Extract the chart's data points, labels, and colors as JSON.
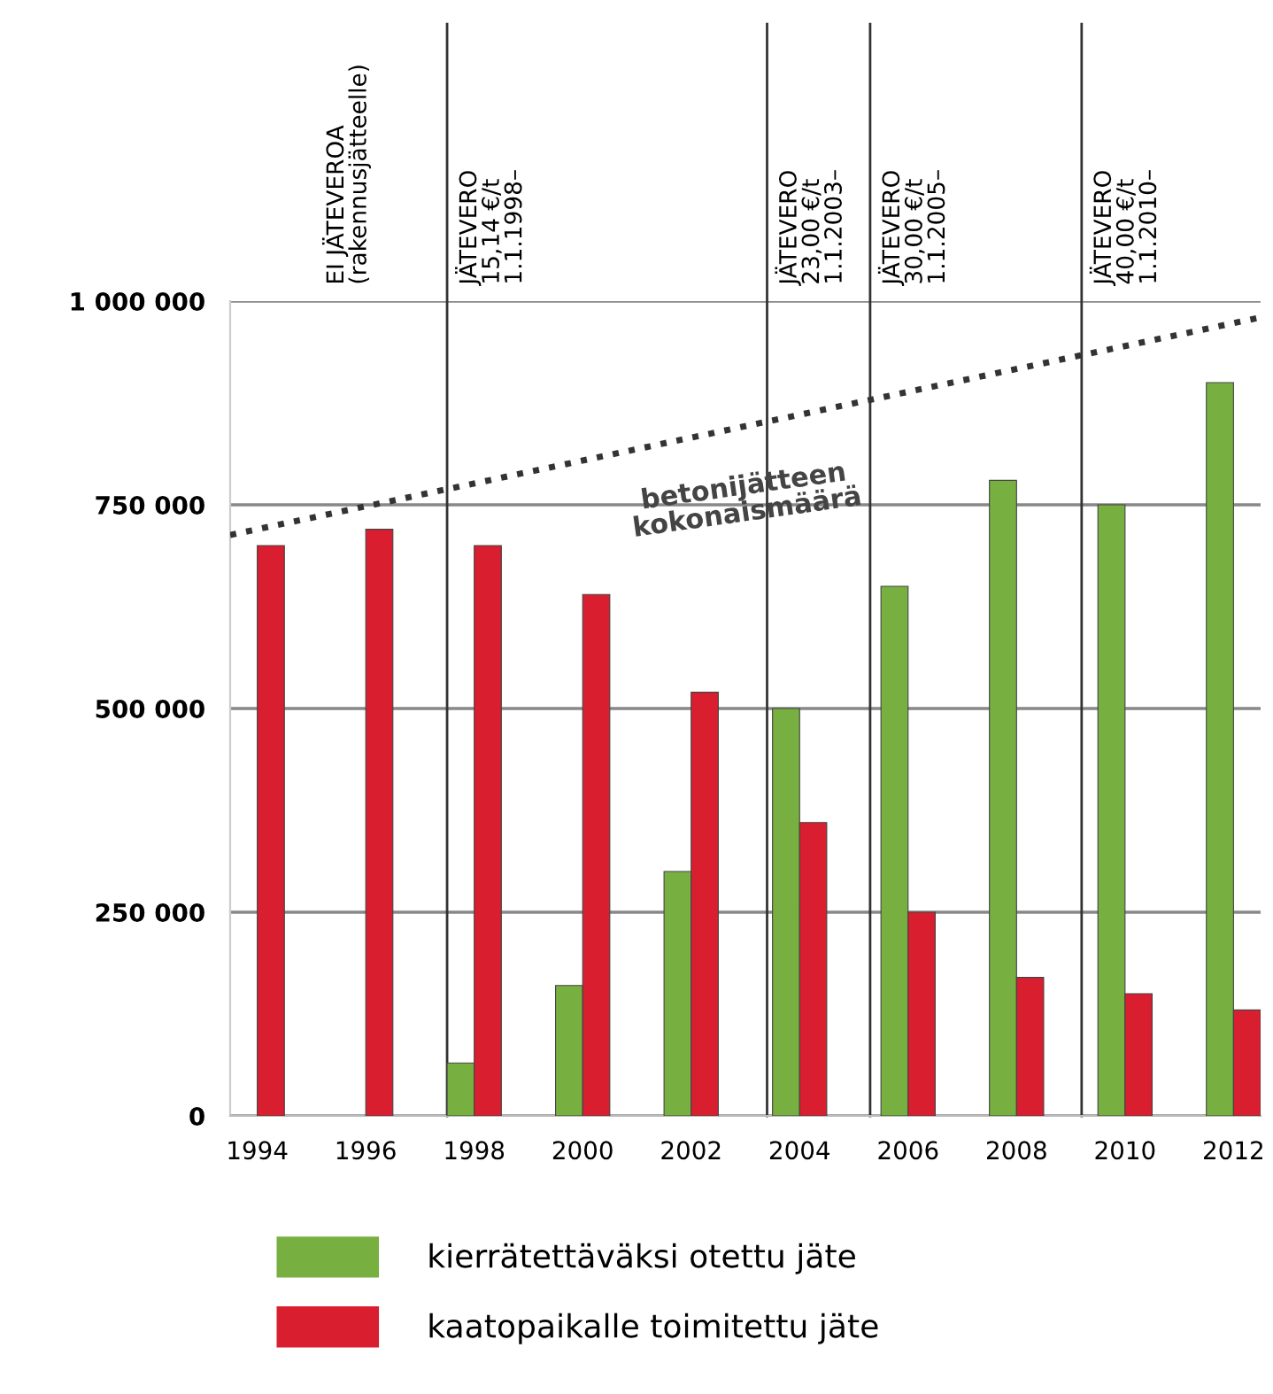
{
  "chart_data": {
    "type": "bar",
    "x": [
      1994,
      1996,
      1998,
      2000,
      2002,
      2004,
      2006,
      2008,
      2010,
      2012
    ],
    "xlim": [
      1993.5,
      2012.5
    ],
    "xticks": [
      1994,
      1996,
      1998,
      2000,
      2002,
      2004,
      2006,
      2008,
      2010,
      2012
    ],
    "ylim": [
      0,
      1000000
    ],
    "yticks": [
      {
        "value": 0,
        "label": "0"
      },
      {
        "value": 250000,
        "label": "250 000"
      },
      {
        "value": 500000,
        "label": "500 000"
      },
      {
        "value": 750000,
        "label": "750 000"
      },
      {
        "value": 1000000,
        "label": "1 000 000"
      }
    ],
    "series": [
      {
        "name": "kierrätettäväksi otettu jäte",
        "color": "#77b041",
        "values": [
          null,
          null,
          65000,
          160000,
          300000,
          500000,
          650000,
          780000,
          750000,
          900000
        ]
      },
      {
        "name": "kaatopaikalle toimitettu jäte",
        "color": "#d81e2f",
        "values": [
          700000,
          720000,
          700000,
          640000,
          520000,
          360000,
          250000,
          170000,
          150000,
          130000
        ]
      },
      {
        "type": "line",
        "color": "#333333",
        "line_style": "dotted",
        "x": [
          1993.5,
          2012.5
        ],
        "values": [
          713000,
          980000
        ]
      }
    ],
    "ref_lines": [
      {
        "axis": "x",
        "value": 1997.5,
        "label": "JÄTEVERO\n15,14 €/t\n1.1.1998–",
        "color": "#333333"
      },
      {
        "axis": "x",
        "value": 2003.4,
        "label": "JÄTEVERO\n23,00 €/t\n1.1.2003–",
        "color": "#333333"
      },
      {
        "axis": "x",
        "value": 2005.3,
        "label": "JÄTEVERO\n30,00 €/t\n1.1.2005–",
        "color": "#333333"
      },
      {
        "axis": "x",
        "value": 2009.2,
        "label": "JÄTEVERO\n40,00 €/t\n1.1.2010–",
        "color": "#333333"
      }
    ],
    "annotations": [
      "EI JÄTEVEROA\n(rakennusjätteelle)",
      "betonijätteen\nkokonaismäärä"
    ],
    "grid": "y",
    "legend": "bottom"
  }
}
